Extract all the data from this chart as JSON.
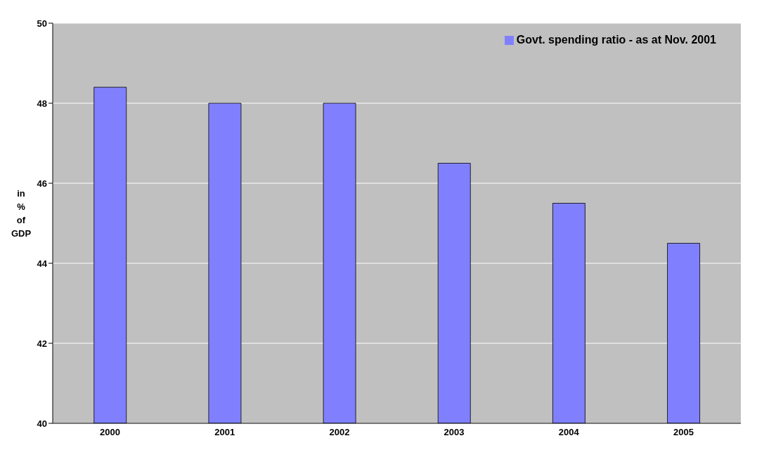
{
  "chart_data": {
    "type": "bar",
    "ylabel": "in % of GDP",
    "categories": [
      "2000",
      "2001",
      "2002",
      "2003",
      "2004",
      "2005"
    ],
    "series": [
      {
        "name": "Govt. spending ratio - as at Nov. 2001",
        "color": "#8080ff",
        "values": [
          48.4,
          48.0,
          48.0,
          46.5,
          45.5,
          44.5
        ]
      }
    ],
    "ylim": [
      40,
      50
    ],
    "yticks": [
      40,
      42,
      44,
      46,
      48,
      50
    ],
    "grid": "y",
    "legend": "top right"
  }
}
